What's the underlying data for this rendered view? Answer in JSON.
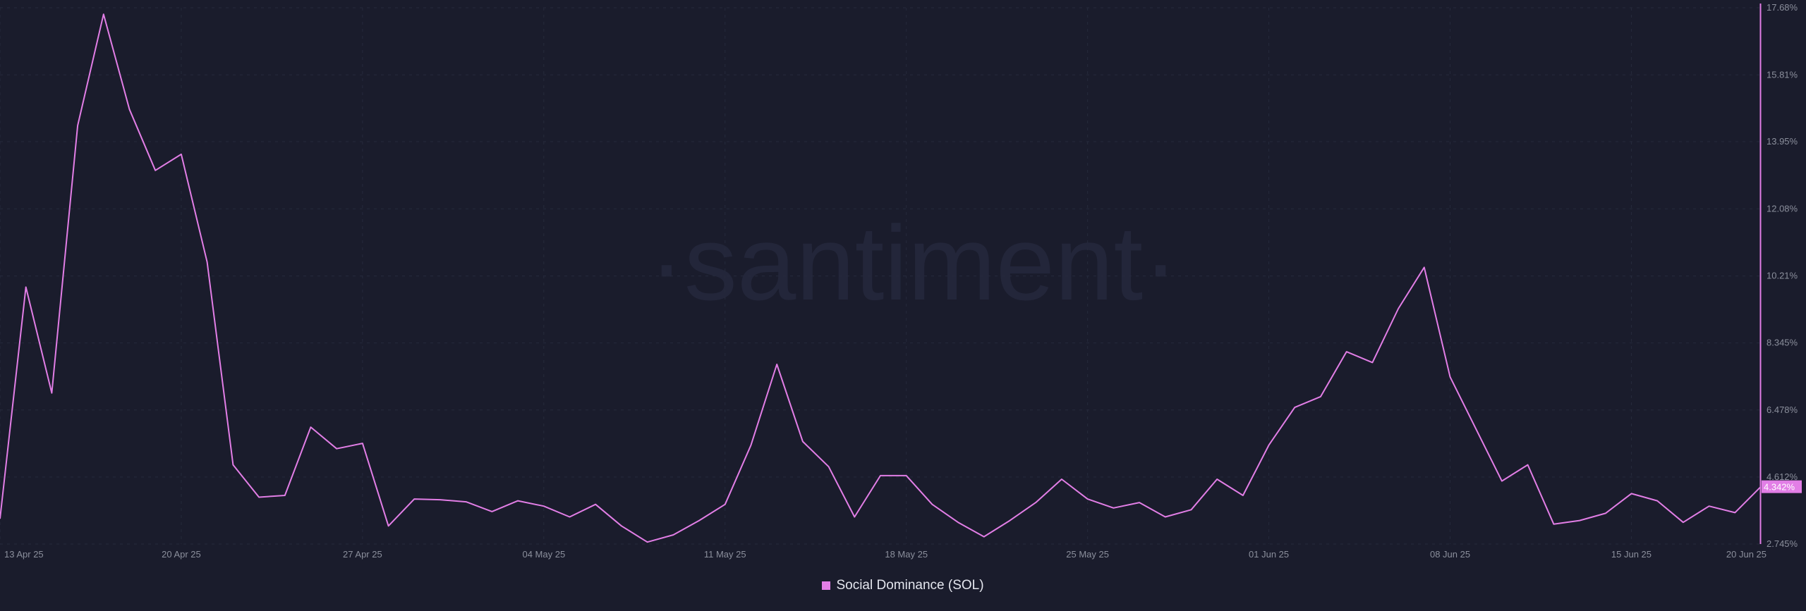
{
  "watermark": "·santiment·",
  "colors": {
    "background": "#1a1c2c",
    "series": "#e27ee6",
    "grid": "#262a3c",
    "axis_text": "#8b8f9c",
    "badge_text": "#ffffff"
  },
  "chart_data": {
    "type": "line",
    "title": "",
    "xlabel": "",
    "ylabel": "",
    "ylim": [
      2.745,
      17.68
    ],
    "y_ticks": [
      "17.68%",
      "15.81%",
      "13.95%",
      "12.08%",
      "10.21%",
      "8.345%",
      "6.478%",
      "4.612%",
      "2.745%"
    ],
    "y_tick_values": [
      17.68,
      15.81,
      13.95,
      12.08,
      10.21,
      8.345,
      6.478,
      4.612,
      2.745
    ],
    "x_ticks": [
      "13 Apr 25",
      "20 Apr 25",
      "27 Apr 25",
      "04 May 25",
      "11 May 25",
      "18 May 25",
      "25 May 25",
      "01 Jun 25",
      "08 Jun 25",
      "15 Jun 25",
      "20 Jun 25"
    ],
    "x_tick_dates": [
      "2025-04-13",
      "2025-04-20",
      "2025-04-27",
      "2025-05-04",
      "2025-05-11",
      "2025-05-18",
      "2025-05-25",
      "2025-06-01",
      "2025-06-08",
      "2025-06-15",
      "2025-06-20"
    ],
    "last_value_label": "4.342%",
    "grid": true,
    "legend_position": "bottom-center",
    "series": [
      {
        "name": "Social Dominance (SOL)",
        "color": "#e27ee6",
        "points": [
          [
            "2025-04-13",
            3.45
          ],
          [
            "2025-04-14",
            9.9
          ],
          [
            "2025-04-15",
            6.95
          ],
          [
            "2025-04-16",
            14.4
          ],
          [
            "2025-04-17",
            17.5
          ],
          [
            "2025-04-18",
            14.85
          ],
          [
            "2025-04-19",
            13.15
          ],
          [
            "2025-04-20",
            13.6
          ],
          [
            "2025-04-21",
            10.6
          ],
          [
            "2025-04-22",
            4.95
          ],
          [
            "2025-04-23",
            4.05
          ],
          [
            "2025-04-24",
            4.1
          ],
          [
            "2025-04-25",
            6.0
          ],
          [
            "2025-04-26",
            5.4
          ],
          [
            "2025-04-27",
            5.55
          ],
          [
            "2025-04-28",
            3.25
          ],
          [
            "2025-04-29",
            4.0
          ],
          [
            "2025-04-30",
            3.98
          ],
          [
            "2025-05-01",
            3.92
          ],
          [
            "2025-05-02",
            3.65
          ],
          [
            "2025-05-03",
            3.95
          ],
          [
            "2025-05-04",
            3.8
          ],
          [
            "2025-05-05",
            3.5
          ],
          [
            "2025-05-06",
            3.85
          ],
          [
            "2025-05-07",
            3.25
          ],
          [
            "2025-05-08",
            2.8
          ],
          [
            "2025-05-09",
            3.0
          ],
          [
            "2025-05-10",
            3.4
          ],
          [
            "2025-05-11",
            3.85
          ],
          [
            "2025-05-12",
            5.5
          ],
          [
            "2025-05-13",
            7.75
          ],
          [
            "2025-05-14",
            5.6
          ],
          [
            "2025-05-15",
            4.9
          ],
          [
            "2025-05-16",
            3.5
          ],
          [
            "2025-05-17",
            4.65
          ],
          [
            "2025-05-18",
            4.65
          ],
          [
            "2025-05-19",
            3.85
          ],
          [
            "2025-05-20",
            3.35
          ],
          [
            "2025-05-21",
            2.95
          ],
          [
            "2025-05-22",
            3.4
          ],
          [
            "2025-05-23",
            3.9
          ],
          [
            "2025-05-24",
            4.55
          ],
          [
            "2025-05-25",
            4.0
          ],
          [
            "2025-05-26",
            3.75
          ],
          [
            "2025-05-27",
            3.9
          ],
          [
            "2025-05-28",
            3.5
          ],
          [
            "2025-05-29",
            3.7
          ],
          [
            "2025-05-30",
            4.55
          ],
          [
            "2025-05-31",
            4.1
          ],
          [
            "2025-06-01",
            5.5
          ],
          [
            "2025-06-02",
            6.55
          ],
          [
            "2025-06-03",
            6.85
          ],
          [
            "2025-06-04",
            8.1
          ],
          [
            "2025-06-05",
            7.8
          ],
          [
            "2025-06-06",
            9.3
          ],
          [
            "2025-06-07",
            10.45
          ],
          [
            "2025-06-08",
            7.4
          ],
          [
            "2025-06-09",
            5.95
          ],
          [
            "2025-06-10",
            4.5
          ],
          [
            "2025-06-11",
            4.95
          ],
          [
            "2025-06-12",
            3.3
          ],
          [
            "2025-06-13",
            3.4
          ],
          [
            "2025-06-14",
            3.6
          ],
          [
            "2025-06-15",
            4.15
          ],
          [
            "2025-06-16",
            3.95
          ],
          [
            "2025-06-17",
            3.35
          ],
          [
            "2025-06-18",
            3.8
          ],
          [
            "2025-06-19",
            3.62
          ],
          [
            "2025-06-20",
            4.342
          ]
        ]
      }
    ]
  }
}
